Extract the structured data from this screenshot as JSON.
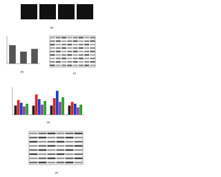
{
  "panels": {
    "a": "(a)",
    "b": "(b)",
    "c": "(c)",
    "d": "(d)",
    "e": "(e)"
  },
  "chart_data": [
    {
      "type": "bar",
      "values": [
        1.0,
        0.65,
        0.8
      ],
      "color": "#555555",
      "ylim": [
        0,
        1.5
      ]
    },
    {
      "type": "bar",
      "ylim": [
        0,
        3
      ],
      "series": [
        {
          "color": "#222222",
          "values": [
            1.0,
            1.0,
            1.0,
            1.0
          ]
        },
        {
          "color": "#d62728",
          "values": [
            1.6,
            2.2,
            1.8,
            1.4
          ]
        },
        {
          "color": "#1f3fbf",
          "values": [
            1.3,
            1.7,
            2.6,
            1.2
          ]
        },
        {
          "color": "#8e44ad",
          "values": [
            0.9,
            1.1,
            1.4,
            0.8
          ]
        },
        {
          "color": "#2ca02c",
          "values": [
            1.2,
            1.5,
            1.9,
            1.1
          ]
        }
      ]
    }
  ]
}
